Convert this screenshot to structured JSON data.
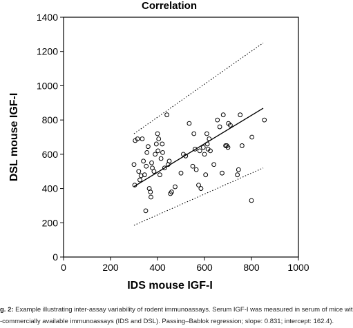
{
  "chart_data": {
    "type": "scatter",
    "title": "Correlation",
    "xlabel": "IDS mouse IGF-I",
    "ylabel": "DSL mouse IGF-I",
    "xlim": [
      0,
      1000
    ],
    "ylim": [
      0,
      1400
    ],
    "xticks": [
      0,
      200,
      400,
      600,
      800,
      1000
    ],
    "yticks": [
      0,
      200,
      400,
      600,
      800,
      1000,
      1200,
      1400
    ],
    "xtick_labels": [
      "0",
      "200",
      "400",
      "600",
      "800",
      "1000"
    ],
    "ytick_labels": [
      "0",
      "200",
      "400",
      "600",
      "800",
      "1000",
      "1200",
      "1400"
    ],
    "grid": false,
    "series": [
      {
        "marker": "open-circle",
        "points": [
          [
            300,
            540
          ],
          [
            303,
            420
          ],
          [
            305,
            680
          ],
          [
            315,
            690
          ],
          [
            320,
            500
          ],
          [
            325,
            450
          ],
          [
            330,
            475
          ],
          [
            335,
            690
          ],
          [
            340,
            560
          ],
          [
            345,
            480
          ],
          [
            350,
            270
          ],
          [
            352,
            530
          ],
          [
            355,
            610
          ],
          [
            360,
            645
          ],
          [
            365,
            400
          ],
          [
            370,
            380
          ],
          [
            372,
            350
          ],
          [
            375,
            550
          ],
          [
            378,
            520
          ],
          [
            385,
            500
          ],
          [
            390,
            600
          ],
          [
            395,
            660
          ],
          [
            400,
            720
          ],
          [
            402,
            620
          ],
          [
            405,
            690
          ],
          [
            410,
            480
          ],
          [
            415,
            575
          ],
          [
            420,
            660
          ],
          [
            422,
            610
          ],
          [
            430,
            520
          ],
          [
            440,
            830
          ],
          [
            445,
            540
          ],
          [
            450,
            560
          ],
          [
            455,
            370
          ],
          [
            460,
            380
          ],
          [
            475,
            410
          ],
          [
            500,
            490
          ],
          [
            510,
            600
          ],
          [
            520,
            590
          ],
          [
            535,
            780
          ],
          [
            550,
            530
          ],
          [
            555,
            720
          ],
          [
            560,
            630
          ],
          [
            565,
            510
          ],
          [
            575,
            420
          ],
          [
            580,
            620
          ],
          [
            585,
            400
          ],
          [
            595,
            640
          ],
          [
            600,
            600
          ],
          [
            605,
            480
          ],
          [
            610,
            720
          ],
          [
            612,
            660
          ],
          [
            615,
            630
          ],
          [
            620,
            690
          ],
          [
            625,
            620
          ],
          [
            640,
            540
          ],
          [
            655,
            800
          ],
          [
            665,
            760
          ],
          [
            675,
            490
          ],
          [
            680,
            830
          ],
          [
            690,
            650
          ],
          [
            695,
            650
          ],
          [
            700,
            640
          ],
          [
            702,
            780
          ],
          [
            710,
            770
          ],
          [
            740,
            480
          ],
          [
            745,
            510
          ],
          [
            752,
            830
          ],
          [
            760,
            650
          ],
          [
            800,
            330
          ],
          [
            802,
            700
          ],
          [
            855,
            800
          ]
        ]
      }
    ],
    "regression": {
      "label": "Passing-Bablok regression",
      "slope": 0.831,
      "intercept": 162.4,
      "x_range": [
        300,
        850
      ],
      "style": "solid"
    },
    "confidence_band": {
      "style": "dotted",
      "upper": [
        [
          300,
          720
        ],
        [
          850,
          1250
        ]
      ],
      "lower": [
        [
          300,
          185
        ],
        [
          850,
          520
        ]
      ]
    }
  },
  "caption": {
    "prefix": "g. 2:",
    "line1": "Example illustrating inter-assay variability of rodent immunoassays. Serum IGF-I was measured in serum of mice wit",
    "line2": "-commercially available immunoassays (IDS and DSL). Passing–Bablok regression; slope: 0.831; intercept: 162.4)."
  }
}
